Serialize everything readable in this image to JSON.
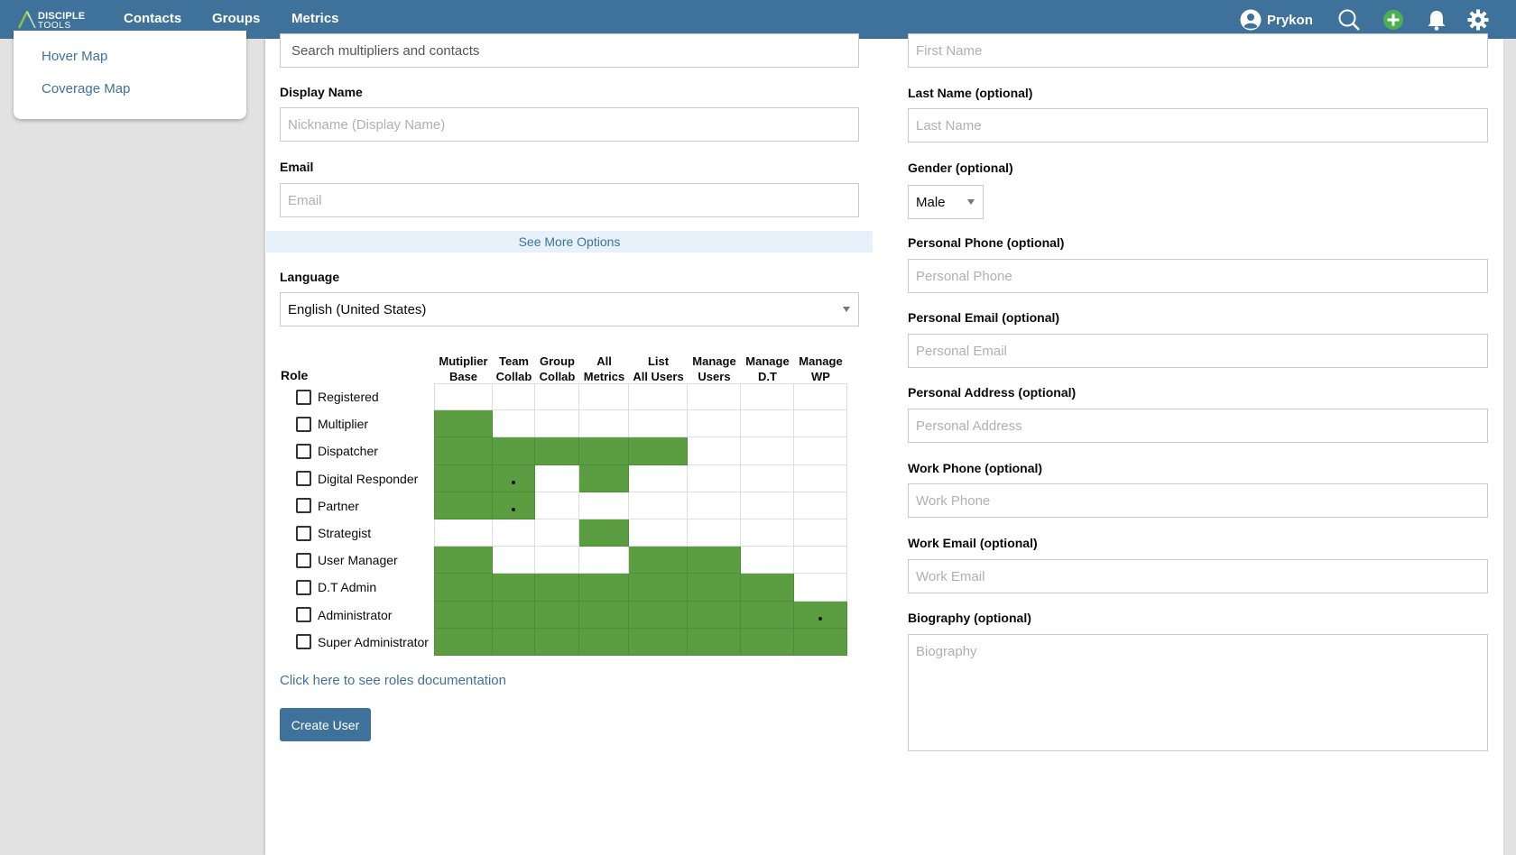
{
  "header": {
    "logo_line1": "DISCIPLE",
    "logo_line2": "TOOLS",
    "nav": [
      "Contacts",
      "Groups",
      "Metrics"
    ],
    "user_name": "Prykon",
    "icons": [
      "user-circle-icon",
      "search-icon",
      "add-icon",
      "bell-icon",
      "gear-icon"
    ]
  },
  "sidebar": {
    "items": [
      "Hover Map",
      "Coverage Map"
    ]
  },
  "form_left": {
    "search_placeholder": "Search multipliers and contacts",
    "display_name_label": "Display Name",
    "display_name_placeholder": "Nickname (Display Name)",
    "email_label": "Email",
    "email_placeholder": "Email",
    "see_more": "See More Options",
    "language_label": "Language",
    "language_value": "English (United States)"
  },
  "roles": {
    "role_label": "Role",
    "columns": [
      [
        "Mutiplier",
        "Base"
      ],
      [
        "Team",
        "Collab"
      ],
      [
        "Group",
        "Collab"
      ],
      [
        "All",
        "Metrics"
      ],
      [
        "List",
        "All Users"
      ],
      [
        "Manage",
        "Users"
      ],
      [
        "Manage",
        "D.T"
      ],
      [
        "Manage",
        "WP"
      ]
    ],
    "rows": [
      {
        "name": "Registered",
        "cells": [
          0,
          0,
          0,
          0,
          0,
          0,
          0,
          0
        ]
      },
      {
        "name": "Multiplier",
        "cells": [
          1,
          0,
          0,
          0,
          0,
          0,
          0,
          0
        ]
      },
      {
        "name": "Dispatcher",
        "cells": [
          1,
          1,
          1,
          1,
          1,
          0,
          0,
          0
        ]
      },
      {
        "name": "Digital Responder",
        "cells": [
          1,
          2,
          0,
          1,
          0,
          0,
          0,
          0
        ]
      },
      {
        "name": "Partner",
        "cells": [
          1,
          2,
          0,
          0,
          0,
          0,
          0,
          0
        ]
      },
      {
        "name": "Strategist",
        "cells": [
          0,
          0,
          0,
          1,
          0,
          0,
          0,
          0
        ]
      },
      {
        "name": "User Manager",
        "cells": [
          1,
          0,
          0,
          0,
          1,
          1,
          0,
          0
        ]
      },
      {
        "name": "D.T Admin",
        "cells": [
          1,
          1,
          1,
          1,
          1,
          1,
          1,
          0
        ]
      },
      {
        "name": "Administrator",
        "cells": [
          1,
          1,
          1,
          1,
          1,
          1,
          1,
          2
        ]
      },
      {
        "name": "Super Administrator",
        "cells": [
          1,
          1,
          1,
          1,
          1,
          1,
          1,
          1
        ]
      }
    ],
    "doc_link": "Click here to see roles documentation",
    "create_button": "Create User",
    "active_color": "#5a9e41"
  },
  "form_right": {
    "first_name_placeholder": "First Name",
    "last_name_label": "Last Name (optional)",
    "last_name_placeholder": "Last Name",
    "gender_label": "Gender (optional)",
    "gender_value": "Male",
    "personal_phone_label": "Personal Phone (optional)",
    "personal_phone_placeholder": "Personal Phone",
    "personal_email_label": "Personal Email (optional)",
    "personal_email_placeholder": "Personal Email",
    "personal_address_label": "Personal Address (optional)",
    "personal_address_placeholder": "Personal Address",
    "work_phone_label": "Work Phone (optional)",
    "work_phone_placeholder": "Work Phone",
    "work_email_label": "Work Email (optional)",
    "work_email_placeholder": "Work Email",
    "biography_label": "Biography (optional)",
    "biography_placeholder": "Biography"
  }
}
